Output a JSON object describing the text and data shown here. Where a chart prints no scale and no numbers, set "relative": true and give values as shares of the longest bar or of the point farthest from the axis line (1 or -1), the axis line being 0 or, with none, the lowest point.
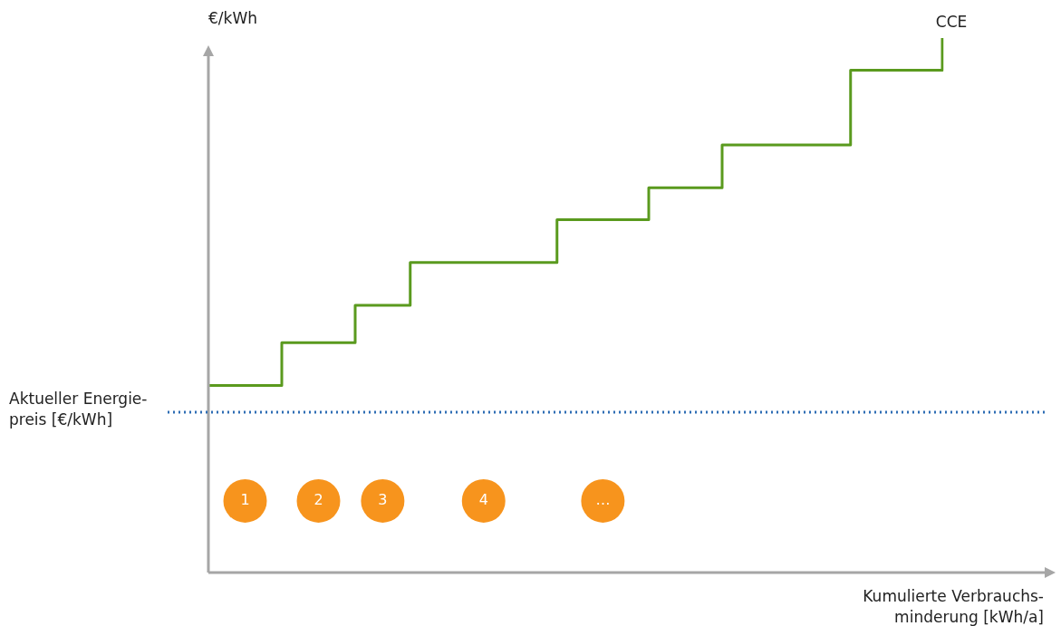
{
  "chart_data": {
    "type": "step",
    "relative": true,
    "ylabel": "€/kWh",
    "xlabel": "Kumulierte Verbrauchs-\nminderung [kWh/a]",
    "categories": [
      null,
      null,
      null,
      null,
      null,
      null,
      null,
      null,
      null,
      null,
      null,
      null,
      null,
      null,
      null,
      null,
      null,
      null,
      null,
      null,
      null,
      null,
      null,
      null,
      null,
      null,
      null,
      null,
      null,
      null,
      null,
      null,
      null,
      null,
      null,
      null,
      null,
      null,
      null,
      null,
      null
    ],
    "series": [
      {
        "name": "CCE",
        "color": "#5a9a1e",
        "values": [
          0.35,
          0.35,
          0.35,
          0.35,
          0.43,
          0.43,
          0.43,
          0.43,
          0.5,
          0.5,
          0.5,
          0.58,
          0.58,
          0.58,
          0.58,
          0.58,
          0.58,
          0.58,
          0.58,
          0.66,
          0.66,
          0.66,
          0.66,
          0.66,
          0.72,
          0.72,
          0.72,
          0.72,
          0.8,
          0.8,
          0.8,
          0.8,
          0.8,
          0.8,
          0.8,
          0.94,
          0.94,
          0.94,
          0.94,
          0.94,
          1.0
        ]
      }
    ],
    "ref_lines": [
      {
        "axis": "y",
        "value": 0.3,
        "label": "Aktueller Energie-\npreis [€/kWh]",
        "color": "#2e6db4",
        "line_style": "dotted"
      }
    ],
    "annotations": [
      "1",
      "2",
      "3",
      "4",
      "…"
    ],
    "marker": "none",
    "line_style": "solid"
  }
}
